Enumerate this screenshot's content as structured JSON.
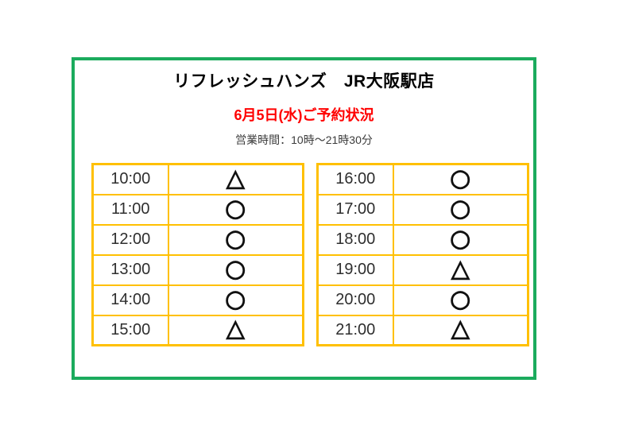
{
  "header": {
    "store_title": "リフレッシュハンズ　JR大阪駅店",
    "date_status": "6月5日(水)ご予約状況",
    "business_hours": "営業時間：10時～21時30分"
  },
  "reservation_tables": [
    {
      "name": "early-slots",
      "rows": [
        {
          "time": "10:00",
          "status": "△"
        },
        {
          "time": "11:00",
          "status": "○"
        },
        {
          "time": "12:00",
          "status": "○"
        },
        {
          "time": "13:00",
          "status": "○"
        },
        {
          "time": "14:00",
          "status": "○"
        },
        {
          "time": "15:00",
          "status": "△"
        }
      ]
    },
    {
      "name": "late-slots",
      "rows": [
        {
          "time": "16:00",
          "status": "○"
        },
        {
          "time": "17:00",
          "status": "○"
        },
        {
          "time": "18:00",
          "status": "○"
        },
        {
          "time": "19:00",
          "status": "△"
        },
        {
          "time": "20:00",
          "status": "○"
        },
        {
          "time": "21:00",
          "status": "△"
        }
      ]
    }
  ],
  "colors": {
    "frame_green": "#1bab5d",
    "table_orange": "#ffc000",
    "date_red": "#ff0000",
    "symbol_black": "#111111"
  }
}
